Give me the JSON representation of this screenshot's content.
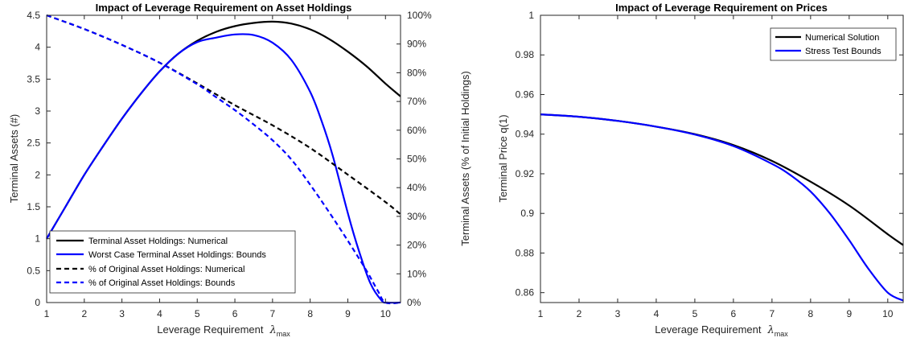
{
  "chart_data": [
    {
      "type": "line",
      "title": "Impact of Leverage Requirement on Asset Holdings",
      "xlabel": "Leverage Requirement",
      "xlabel_symbol": "λ",
      "xlabel_subscript": "max",
      "ylabel": "Terminal Assets (#)",
      "ylabel_right": "Terminal Assets (% of Initial Holdings)",
      "xlim": [
        1,
        10.4
      ],
      "ylim": [
        0,
        4.5
      ],
      "ylim_right": [
        0,
        100
      ],
      "x_ticks": [
        "1",
        "2",
        "3",
        "4",
        "5",
        "6",
        "7",
        "8",
        "9",
        "10"
      ],
      "y_ticks": [
        "0",
        "0.5",
        "1",
        "1.5",
        "2",
        "2.5",
        "3",
        "3.5",
        "4",
        "4.5"
      ],
      "y_ticks_right": [
        "0%",
        "10%",
        "20%",
        "30%",
        "40%",
        "50%",
        "60%",
        "70%",
        "80%",
        "90%",
        "100%"
      ],
      "legend_position": "bottom-left",
      "grid": false,
      "series": [
        {
          "name": "Terminal Asset Holdings: Numerical",
          "color": "#000000",
          "style": "solid",
          "axis": "left",
          "x": [
            1,
            1.5,
            2,
            2.5,
            3,
            3.5,
            4,
            4.5,
            5,
            5.5,
            6,
            6.5,
            7,
            7.5,
            8,
            8.5,
            9,
            9.5,
            10,
            10.4
          ],
          "y": [
            1.0,
            1.5,
            2.0,
            2.45,
            2.88,
            3.27,
            3.62,
            3.9,
            4.1,
            4.24,
            4.33,
            4.38,
            4.4,
            4.37,
            4.28,
            4.13,
            3.93,
            3.7,
            3.43,
            3.23
          ]
        },
        {
          "name": "Worst Case Terminal Asset Holdings: Bounds",
          "color": "#0000ff",
          "style": "solid",
          "axis": "left",
          "x": [
            1,
            1.5,
            2,
            2.5,
            3,
            3.5,
            4,
            4.5,
            5,
            5.5,
            6,
            6.5,
            7,
            7.5,
            8,
            8.3,
            8.6,
            9,
            9.3,
            9.6,
            9.9,
            10.05,
            10.4
          ],
          "y": [
            1.0,
            1.5,
            2.0,
            2.45,
            2.88,
            3.27,
            3.62,
            3.9,
            4.08,
            4.15,
            4.2,
            4.19,
            4.07,
            3.8,
            3.3,
            2.85,
            2.3,
            1.4,
            0.8,
            0.3,
            0.03,
            0.0,
            0.0
          ]
        },
        {
          "name": "% of Original Asset Holdings: Numerical",
          "color": "#000000",
          "style": "dashed",
          "axis": "right",
          "x": [
            1,
            2,
            3,
            4,
            5,
            6,
            7,
            8,
            9,
            10,
            10.4
          ],
          "y": [
            100,
            95.2,
            89.7,
            83.5,
            76.3,
            68.7,
            61.7,
            53.8,
            44.5,
            35.0,
            30.7
          ]
        },
        {
          "name": "% of Original Asset Holdings: Bounds",
          "color": "#0000ff",
          "style": "dashed",
          "axis": "right",
          "x": [
            1,
            2,
            3,
            4,
            5,
            5.5,
            6,
            6.5,
            7,
            7.5,
            8,
            8.5,
            9,
            9.5,
            9.8,
            10.0,
            10.4
          ],
          "y": [
            100,
            95.2,
            89.7,
            83.5,
            76.0,
            71.5,
            67.0,
            62.0,
            56.5,
            49.8,
            41.0,
            31.5,
            21.5,
            11.0,
            4.0,
            0.0,
            0.0
          ]
        }
      ]
    },
    {
      "type": "line",
      "title": "Impact of Leverage Requirement on Prices",
      "xlabel": "Leverage Requirement",
      "xlabel_symbol": "λ",
      "xlabel_subscript": "max",
      "ylabel": "Terminal Price q(1)",
      "xlim": [
        1,
        10.4
      ],
      "ylim": [
        0.855,
        1.0
      ],
      "x_ticks": [
        "1",
        "2",
        "3",
        "4",
        "5",
        "6",
        "7",
        "8",
        "9",
        "10"
      ],
      "y_ticks": [
        "0.86",
        "0.88",
        "0.9",
        "0.92",
        "0.94",
        "0.96",
        "0.98",
        "1"
      ],
      "legend_position": "top-right",
      "grid": false,
      "series": [
        {
          "name": "Numerical Solution",
          "color": "#000000",
          "style": "solid",
          "x": [
            1,
            2,
            3,
            4,
            5,
            6,
            7,
            8,
            9,
            10,
            10.4
          ],
          "y": [
            0.95,
            0.9488,
            0.9467,
            0.9438,
            0.94,
            0.9345,
            0.9265,
            0.916,
            0.904,
            0.8895,
            0.884
          ]
        },
        {
          "name": "Stress Test Bounds",
          "color": "#0000ff",
          "style": "solid",
          "x": [
            1,
            2,
            3,
            4,
            5,
            6,
            7,
            7.5,
            8,
            8.5,
            9,
            9.5,
            10,
            10.4
          ],
          "y": [
            0.95,
            0.9488,
            0.9467,
            0.9438,
            0.9398,
            0.934,
            0.925,
            0.919,
            0.911,
            0.9,
            0.8865,
            0.872,
            0.86,
            0.856
          ]
        }
      ]
    }
  ]
}
